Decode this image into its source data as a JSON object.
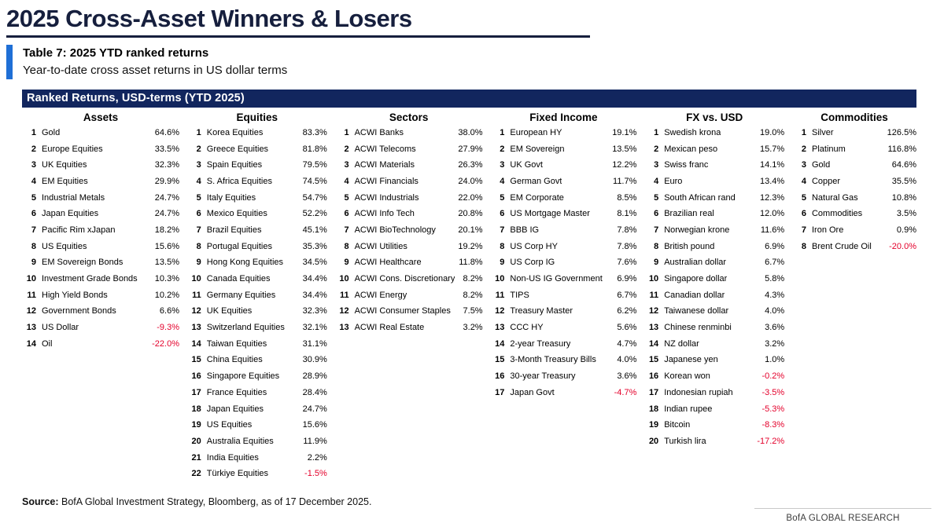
{
  "page": {
    "title": "2025 Cross-Asset Winners & Losers",
    "caption_title": "Table 7: 2025 YTD ranked returns",
    "caption_sub": "Year-to-date cross asset returns in US dollar terms",
    "source_label": "Source:",
    "source_text": " BofA Global Investment Strategy, Bloomberg, as of 17 December 2025.",
    "footer_right": "BofA GLOBAL RESEARCH"
  },
  "colors": {
    "navy": "#12265e",
    "title_navy": "#161f3d",
    "accent_blue": "#1f6fd6",
    "negative_red": "#e4002b"
  },
  "table": {
    "banner": "Ranked Returns, USD-terms (YTD 2025)",
    "columns": [
      {
        "header": "Assets",
        "rows": [
          [
            "1",
            "Gold",
            "64.6%"
          ],
          [
            "2",
            "Europe Equities",
            "33.5%"
          ],
          [
            "3",
            "UK Equities",
            "32.3%"
          ],
          [
            "4",
            "EM Equities",
            "29.9%"
          ],
          [
            "5",
            "Industrial Metals",
            "24.7%"
          ],
          [
            "6",
            "Japan Equities",
            "24.7%"
          ],
          [
            "7",
            "Pacific Rim xJapan",
            "18.2%"
          ],
          [
            "8",
            "US Equities",
            "15.6%"
          ],
          [
            "9",
            "EM Sovereign Bonds",
            "13.5%"
          ],
          [
            "10",
            "Investment Grade Bonds",
            "10.3%"
          ],
          [
            "11",
            "High Yield Bonds",
            "10.2%"
          ],
          [
            "12",
            "Government Bonds",
            "6.6%"
          ],
          [
            "13",
            "US Dollar",
            "-9.3%"
          ],
          [
            "14",
            "Oil",
            "-22.0%"
          ]
        ]
      },
      {
        "header": "Equities",
        "rows": [
          [
            "1",
            "Korea Equities",
            "83.3%"
          ],
          [
            "2",
            "Greece Equities",
            "81.8%"
          ],
          [
            "3",
            "Spain Equities",
            "79.5%"
          ],
          [
            "4",
            "S. Africa Equities",
            "74.5%"
          ],
          [
            "5",
            "Italy Equities",
            "54.7%"
          ],
          [
            "6",
            "Mexico Equities",
            "52.2%"
          ],
          [
            "7",
            "Brazil Equities",
            "45.1%"
          ],
          [
            "8",
            "Portugal Equities",
            "35.3%"
          ],
          [
            "9",
            "Hong Kong Equities",
            "34.5%"
          ],
          [
            "10",
            "Canada Equities",
            "34.4%"
          ],
          [
            "11",
            "Germany Equities",
            "34.4%"
          ],
          [
            "12",
            "UK Equities",
            "32.3%"
          ],
          [
            "13",
            "Switzerland Equities",
            "32.1%"
          ],
          [
            "14",
            "Taiwan Equities",
            "31.1%"
          ],
          [
            "15",
            "China Equities",
            "30.9%"
          ],
          [
            "16",
            "Singapore Equities",
            "28.9%"
          ],
          [
            "17",
            "France Equities",
            "28.4%"
          ],
          [
            "18",
            "Japan Equities",
            "24.7%"
          ],
          [
            "19",
            "US Equities",
            "15.6%"
          ],
          [
            "20",
            "Australia Equities",
            "11.9%"
          ],
          [
            "21",
            "India Equities",
            "2.2%"
          ],
          [
            "22",
            "Türkiye Equities",
            "-1.5%"
          ]
        ]
      },
      {
        "header": "Sectors",
        "rows": [
          [
            "1",
            "ACWI Banks",
            "38.0%"
          ],
          [
            "2",
            "ACWI Telecoms",
            "27.9%"
          ],
          [
            "3",
            "ACWI Materials",
            "26.3%"
          ],
          [
            "4",
            "ACWI Financials",
            "24.0%"
          ],
          [
            "5",
            "ACWI Industrials",
            "22.0%"
          ],
          [
            "6",
            "ACWI Info Tech",
            "20.8%"
          ],
          [
            "7",
            "ACWI BioTechnology",
            "20.1%"
          ],
          [
            "8",
            "ACWI Utilities",
            "19.2%"
          ],
          [
            "9",
            "ACWI Healthcare",
            "11.8%"
          ],
          [
            "10",
            "ACWI Cons. Discretionary",
            "8.2%"
          ],
          [
            "11",
            "ACWI Energy",
            "8.2%"
          ],
          [
            "12",
            "ACWI Consumer Staples",
            "7.5%"
          ],
          [
            "13",
            "ACWI Real Estate",
            "3.2%"
          ]
        ]
      },
      {
        "header": "Fixed Income",
        "rows": [
          [
            "1",
            "European HY",
            "19.1%"
          ],
          [
            "2",
            "EM Sovereign",
            "13.5%"
          ],
          [
            "3",
            "UK Govt",
            "12.2%"
          ],
          [
            "4",
            "German Govt",
            "11.7%"
          ],
          [
            "5",
            "EM Corporate",
            "8.5%"
          ],
          [
            "6",
            "US Mortgage Master",
            "8.1%"
          ],
          [
            "7",
            "BBB IG",
            "7.8%"
          ],
          [
            "8",
            "US Corp HY",
            "7.8%"
          ],
          [
            "9",
            "US Corp IG",
            "7.6%"
          ],
          [
            "10",
            "Non-US IG Government",
            "6.9%"
          ],
          [
            "11",
            "TIPS",
            "6.7%"
          ],
          [
            "12",
            "Treasury Master",
            "6.2%"
          ],
          [
            "13",
            "CCC HY",
            "5.6%"
          ],
          [
            "14",
            "2-year Treasury",
            "4.7%"
          ],
          [
            "15",
            "3-Month Treasury Bills",
            "4.0%"
          ],
          [
            "16",
            "30-year Treasury",
            "3.6%"
          ],
          [
            "17",
            "Japan Govt",
            "-4.7%"
          ]
        ]
      },
      {
        "header": "FX vs. USD",
        "rows": [
          [
            "1",
            "Swedish krona",
            "19.0%"
          ],
          [
            "2",
            "Mexican peso",
            "15.7%"
          ],
          [
            "3",
            "Swiss franc",
            "14.1%"
          ],
          [
            "4",
            "Euro",
            "13.4%"
          ],
          [
            "5",
            "South African rand",
            "12.3%"
          ],
          [
            "6",
            "Brazilian real",
            "12.0%"
          ],
          [
            "7",
            "Norwegian krone",
            "11.6%"
          ],
          [
            "8",
            "British pound",
            "6.9%"
          ],
          [
            "9",
            "Australian dollar",
            "6.7%"
          ],
          [
            "10",
            "Singapore dollar",
            "5.8%"
          ],
          [
            "11",
            "Canadian dollar",
            "4.3%"
          ],
          [
            "12",
            "Taiwanese dollar",
            "4.0%"
          ],
          [
            "13",
            "Chinese renminbi",
            "3.6%"
          ],
          [
            "14",
            "NZ dollar",
            "3.2%"
          ],
          [
            "15",
            "Japanese yen",
            "1.0%"
          ],
          [
            "16",
            "Korean won",
            "-0.2%"
          ],
          [
            "17",
            "Indonesian rupiah",
            "-3.5%"
          ],
          [
            "18",
            "Indian rupee",
            "-5.3%"
          ],
          [
            "19",
            "Bitcoin",
            "-8.3%"
          ],
          [
            "20",
            "Turkish lira",
            "-17.2%"
          ]
        ]
      },
      {
        "header": "Commodities",
        "rows": [
          [
            "1",
            "Silver",
            "126.5%"
          ],
          [
            "2",
            "Platinum",
            "116.8%"
          ],
          [
            "3",
            "Gold",
            "64.6%"
          ],
          [
            "4",
            "Copper",
            "35.5%"
          ],
          [
            "5",
            "Natural Gas",
            "10.8%"
          ],
          [
            "6",
            "Commodities",
            "3.5%"
          ],
          [
            "7",
            "Iron Ore",
            "0.9%"
          ],
          [
            "8",
            "Brent Crude Oil",
            "-20.0%"
          ]
        ]
      }
    ]
  }
}
